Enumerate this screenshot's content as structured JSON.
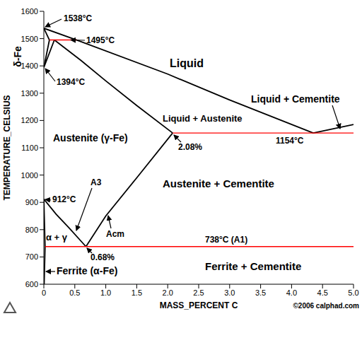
{
  "chart_data": {
    "type": "line",
    "x_label": "MASS_PERCENT C",
    "y_label": "TEMPERATURE_CELSIUS",
    "side_label": "δ-Fe",
    "credit": "©2006 calphad.com",
    "xlim": [
      0,
      5
    ],
    "xticks": [
      0,
      0.5,
      {
        "value": 1,
        "label": "1.0"
      },
      1.5,
      {
        "value": 2,
        "label": "2.0"
      },
      2.5,
      {
        "value": 3,
        "label": "3.0"
      },
      3.5,
      {
        "value": 4,
        "label": "4.0"
      },
      4.5,
      {
        "value": 5,
        "label": "5.0"
      }
    ],
    "ylim": [
      600,
      1600
    ],
    "yticks": [
      600,
      700,
      800,
      900,
      1000,
      1100,
      1200,
      1300,
      1400,
      1500,
      1600
    ],
    "grid": false,
    "series": [
      {
        "type": "line",
        "color": "#000000",
        "x": [
          0,
          0.53,
          2,
          3,
          4.35
        ],
        "values": [
          1538,
          1495,
          1370,
          1275,
          1154
        ]
      },
      {
        "type": "line",
        "color": "#000000",
        "x": [
          4.35,
          5
        ],
        "values": [
          1154,
          1185
        ]
      },
      {
        "type": "line",
        "color": "#000000",
        "x": [
          0,
          0.09
        ],
        "values": [
          1538,
          1495
        ]
      },
      {
        "type": "line",
        "color": "#000000",
        "x": [
          0.09,
          0,
          0.17
        ],
        "values": [
          1495,
          1394,
          1495
        ]
      },
      {
        "type": "line",
        "color": "#000000",
        "x": [
          0.17,
          0.6,
          1,
          1.5,
          2.08
        ],
        "values": [
          1495,
          1420,
          1345,
          1255,
          1154
        ]
      },
      {
        "type": "line",
        "color": "#000000",
        "x": [
          0,
          0.2,
          0.4,
          0.6,
          0.68
        ],
        "values": [
          912,
          856,
          808,
          758,
          738
        ]
      },
      {
        "type": "line",
        "color": "#000000",
        "x": [
          0.68,
          1,
          1.5,
          2.08
        ],
        "values": [
          738,
          850,
          990,
          1154
        ]
      },
      {
        "type": "line",
        "color": "#000000",
        "x": [
          0,
          0.02,
          0.005
        ],
        "values": [
          912,
          738,
          600
        ]
      },
      {
        "type": "line",
        "color": "#ff0000",
        "x": [
          0.09,
          0.53
        ],
        "values": [
          1495,
          1495
        ]
      },
      {
        "type": "line",
        "color": "#ff0000",
        "x": [
          2.08,
          5
        ],
        "values": [
          1154,
          1154
        ]
      },
      {
        "type": "line",
        "color": "#ff0000",
        "x": [
          0.02,
          5
        ],
        "values": [
          738,
          738
        ]
      }
    ],
    "annotations": [
      "1538°C",
      "1495°C",
      "1394°C",
      "Liquid",
      "Liquid + Cementite",
      "Liquid + Austenite",
      "Austenite (γ-Fe)",
      "1154°C",
      "2.08%",
      "A3",
      "912°C",
      "0.68%",
      "Acm",
      "Austenite + Cementite",
      "α + γ",
      "738°C (A1)",
      "Ferrite (α-Fe)",
      "Ferrite + Cementite"
    ]
  }
}
